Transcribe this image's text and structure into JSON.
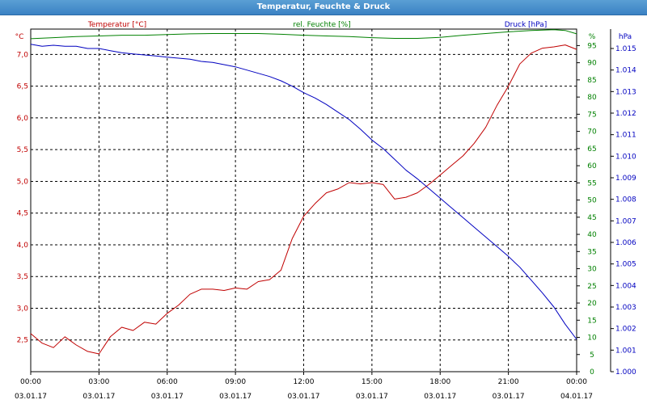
{
  "window": {
    "title": "Temperatur, Feuchte & Druck"
  },
  "chart_data": {
    "type": "line",
    "title": "Temperatur, Feuchte & Druck",
    "grid": true,
    "x_ticks": [
      {
        "x": 0,
        "time": "00:00",
        "date": "03.01.17"
      },
      {
        "x": 3,
        "time": "03:00",
        "date": "03.01.17"
      },
      {
        "x": 6,
        "time": "06:00",
        "date": "03.01.17"
      },
      {
        "x": 9,
        "time": "09:00",
        "date": "03.01.17"
      },
      {
        "x": 12,
        "time": "12:00",
        "date": "03.01.17"
      },
      {
        "x": 15,
        "time": "15:00",
        "date": "03.01.17"
      },
      {
        "x": 18,
        "time": "18:00",
        "date": "03.01.17"
      },
      {
        "x": 21,
        "time": "21:00",
        "date": "03.01.17"
      },
      {
        "x": 24,
        "time": "00:00",
        "date": "04.01.17"
      }
    ],
    "axes": {
      "left": {
        "unit": "°C",
        "range": [
          2.0,
          7.4
        ],
        "color": "#c00000",
        "ticks": [
          {
            "v": 2.5,
            "label": "2,5"
          },
          {
            "v": 3.0,
            "label": "3,0"
          },
          {
            "v": 3.5,
            "label": "3,5"
          },
          {
            "v": 4.0,
            "label": "4,0"
          },
          {
            "v": 4.5,
            "label": "4,5"
          },
          {
            "v": 5.0,
            "label": "5,0"
          },
          {
            "v": 5.5,
            "label": "5,5"
          },
          {
            "v": 6.0,
            "label": "6,0"
          },
          {
            "v": 6.5,
            "label": "6,5"
          },
          {
            "v": 7.0,
            "label": "7,0"
          }
        ]
      },
      "middle": {
        "unit": "%",
        "range": [
          0,
          99.8
        ],
        "color": "#008000",
        "ticks": [
          {
            "v": 0,
            "label": "0"
          },
          {
            "v": 5,
            "label": "5"
          },
          {
            "v": 10,
            "label": "10"
          },
          {
            "v": 15,
            "label": "15"
          },
          {
            "v": 20,
            "label": "20"
          },
          {
            "v": 25,
            "label": "25"
          },
          {
            "v": 30,
            "label": "30"
          },
          {
            "v": 35,
            "label": "35"
          },
          {
            "v": 40,
            "label": "40"
          },
          {
            "v": 45,
            "label": "45"
          },
          {
            "v": 50,
            "label": "50"
          },
          {
            "v": 55,
            "label": "55"
          },
          {
            "v": 60,
            "label": "60"
          },
          {
            "v": 65,
            "label": "65"
          },
          {
            "v": 70,
            "label": "70"
          },
          {
            "v": 75,
            "label": "75"
          },
          {
            "v": 80,
            "label": "80"
          },
          {
            "v": 85,
            "label": "85"
          },
          {
            "v": 90,
            "label": "90"
          },
          {
            "v": 95,
            "label": "95"
          }
        ]
      },
      "right": {
        "unit": "hPa",
        "range": [
          1000.0,
          1015.9
        ],
        "color": "#0000c0",
        "ticks": [
          {
            "v": 1000,
            "label": "1.000"
          },
          {
            "v": 1001,
            "label": "1.001"
          },
          {
            "v": 1002,
            "label": "1.002"
          },
          {
            "v": 1003,
            "label": "1.003"
          },
          {
            "v": 1004,
            "label": "1.004"
          },
          {
            "v": 1005,
            "label": "1.005"
          },
          {
            "v": 1006,
            "label": "1.006"
          },
          {
            "v": 1007,
            "label": "1.007"
          },
          {
            "v": 1008,
            "label": "1.008"
          },
          {
            "v": 1009,
            "label": "1.009"
          },
          {
            "v": 1010,
            "label": "1.010"
          },
          {
            "v": 1011,
            "label": "1.011"
          },
          {
            "v": 1012,
            "label": "1.012"
          },
          {
            "v": 1013,
            "label": "1.013"
          },
          {
            "v": 1014,
            "label": "1.014"
          },
          {
            "v": 1015,
            "label": "1.015"
          }
        ]
      }
    },
    "series": [
      {
        "name": "Temperatur [°C]",
        "axis": "left",
        "color": "#c00000",
        "x": [
          0,
          0.5,
          1,
          1.5,
          2,
          2.5,
          3,
          3.5,
          4,
          4.5,
          5,
          5.5,
          6,
          6.5,
          7,
          7.5,
          8,
          8.5,
          9,
          9.5,
          10,
          10.5,
          11,
          11.5,
          12,
          12.5,
          13,
          13.5,
          14,
          14.5,
          15,
          15.5,
          16,
          16.5,
          17,
          17.5,
          18,
          18.5,
          19,
          19.5,
          20,
          20.5,
          21,
          21.5,
          22,
          22.5,
          23,
          23.5,
          24
        ],
        "y": [
          2.6,
          2.45,
          2.38,
          2.55,
          2.42,
          2.32,
          2.28,
          2.55,
          2.7,
          2.65,
          2.78,
          2.75,
          2.92,
          3.05,
          3.22,
          3.3,
          3.3,
          3.28,
          3.32,
          3.3,
          3.42,
          3.45,
          3.6,
          4.1,
          4.45,
          4.65,
          4.82,
          4.88,
          4.98,
          4.96,
          4.98,
          4.95,
          4.72,
          4.75,
          4.82,
          4.95,
          5.1,
          5.25,
          5.4,
          5.6,
          5.85,
          6.2,
          6.5,
          6.85,
          7.02,
          7.1,
          7.12,
          7.15,
          7.08
        ]
      },
      {
        "name": "rel. Feuchte [%]",
        "axis": "middle",
        "color": "#008000",
        "x": [
          0,
          1,
          2,
          3,
          4,
          5,
          6,
          7,
          8,
          9,
          10,
          11,
          12,
          13,
          14,
          15,
          16,
          17,
          18,
          19,
          20,
          21,
          22,
          23,
          23.5,
          24
        ],
        "y": [
          97,
          97.3,
          97.6,
          97.8,
          98,
          98,
          98.2,
          98.4,
          98.5,
          98.5,
          98.5,
          98.3,
          98,
          97.8,
          97.6,
          97.3,
          97.1,
          97.1,
          97.4,
          98,
          98.5,
          99,
          99.4,
          99.6,
          99.4,
          98.4
        ]
      },
      {
        "name": "Druck [hPa]",
        "axis": "right",
        "color": "#0000c0",
        "x": [
          0,
          0.5,
          1,
          1.5,
          2,
          2.5,
          3,
          3.5,
          4,
          4.5,
          5,
          5.5,
          6,
          6.5,
          7,
          7.5,
          8,
          8.5,
          9,
          9.5,
          10,
          10.5,
          11,
          11.5,
          12,
          12.5,
          13,
          13.5,
          14,
          14.5,
          15,
          15.5,
          16,
          16.5,
          17,
          17.5,
          18,
          18.5,
          19,
          19.5,
          20,
          20.5,
          21,
          21.5,
          22,
          22.5,
          23,
          23.5,
          24
        ],
        "y": [
          1015.2,
          1015.1,
          1015.15,
          1015.1,
          1015.1,
          1015.0,
          1015.0,
          1014.9,
          1014.8,
          1014.75,
          1014.7,
          1014.65,
          1014.6,
          1014.55,
          1014.5,
          1014.4,
          1014.35,
          1014.25,
          1014.15,
          1014.0,
          1013.85,
          1013.7,
          1013.5,
          1013.25,
          1012.95,
          1012.7,
          1012.4,
          1012.05,
          1011.7,
          1011.25,
          1010.75,
          1010.35,
          1009.85,
          1009.35,
          1008.95,
          1008.5,
          1008.05,
          1007.6,
          1007.15,
          1006.7,
          1006.25,
          1005.8,
          1005.35,
          1004.85,
          1004.25,
          1003.65,
          1003.0,
          1002.2,
          1001.5
        ]
      }
    ]
  }
}
